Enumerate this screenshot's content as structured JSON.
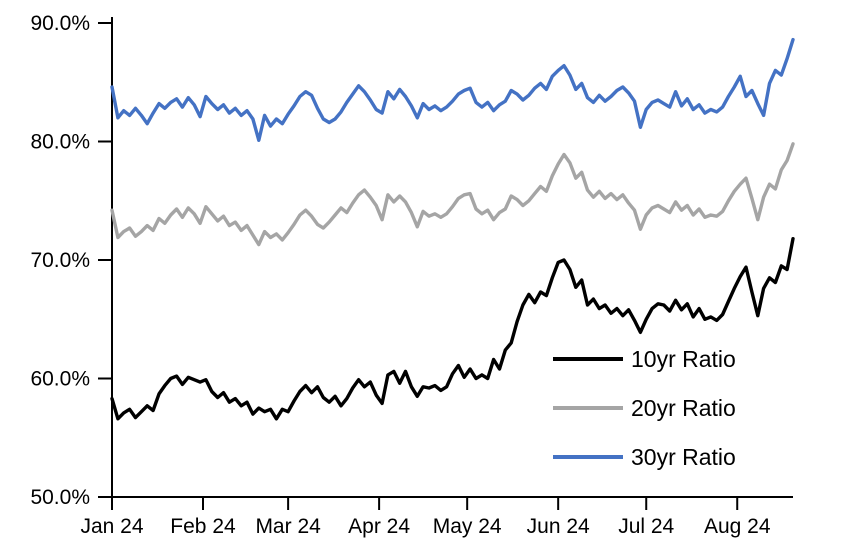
{
  "page": {
    "background": "#FFFFFF"
  },
  "chart_data": {
    "type": "line",
    "title": "",
    "xlabel": "",
    "ylabel": "",
    "grid": false,
    "legend": {
      "position": "inside-bottom-right",
      "entries": [
        "10yr Ratio",
        "20yr Ratio",
        "30yr Ratio"
      ]
    },
    "x_axis": {
      "unit": "days-from-Jan-1-24",
      "range_days": [
        0,
        232
      ],
      "tick_days": [
        0,
        31,
        60,
        91,
        121,
        152,
        182,
        213
      ],
      "tick_labels": [
        "Jan 24",
        "Feb 24",
        "Mar 24",
        "Apr 24",
        "May 24",
        "Jun 24",
        "Jul 24",
        "Aug 24"
      ]
    },
    "y_axis": {
      "range": [
        50,
        90
      ],
      "tick_values": [
        90,
        80,
        70,
        60,
        50
      ],
      "tick_labels": [
        "90.0%",
        "80.0%",
        "70.0%",
        "60.0%",
        "50.0%"
      ],
      "format": "percent_1dp"
    },
    "sample_step_days": 2,
    "series": [
      {
        "name": "10yr Ratio",
        "color": "#000000",
        "values": [
          58.3,
          56.6,
          57.1,
          57.4,
          56.7,
          57.2,
          57.7,
          57.3,
          58.7,
          59.4,
          60.0,
          60.2,
          59.5,
          60.1,
          59.9,
          59.7,
          59.9,
          58.9,
          58.4,
          58.8,
          58.0,
          58.3,
          57.7,
          58.0,
          57.0,
          57.5,
          57.2,
          57.4,
          56.6,
          57.4,
          57.2,
          58.1,
          58.9,
          59.4,
          58.8,
          59.3,
          58.4,
          58.0,
          58.5,
          57.7,
          58.3,
          59.2,
          59.9,
          59.3,
          59.7,
          58.6,
          57.9,
          60.3,
          60.6,
          59.6,
          60.6,
          59.3,
          58.5,
          59.3,
          59.2,
          59.4,
          59.0,
          59.3,
          60.4,
          61.1,
          60.1,
          60.8,
          60.0,
          60.3,
          60.0,
          61.6,
          60.8,
          62.4,
          63.0,
          64.8,
          66.2,
          67.1,
          66.4,
          67.3,
          67.0,
          68.5,
          69.8,
          70.0,
          69.2,
          67.7,
          68.3,
          66.2,
          66.7,
          65.9,
          66.2,
          65.5,
          65.9,
          65.3,
          65.8,
          64.9,
          63.9,
          65.0,
          65.9,
          66.3,
          66.2,
          65.7,
          66.6,
          65.8,
          66.3,
          65.2,
          65.9,
          65.0,
          65.2,
          64.9,
          65.4,
          66.5,
          67.6,
          68.6,
          69.4,
          67.3,
          65.3,
          67.6,
          68.5,
          68.1,
          69.5,
          69.2,
          71.8
        ]
      },
      {
        "name": "20yr Ratio",
        "color": "#A5A5A5",
        "values": [
          74.2,
          71.9,
          72.4,
          72.7,
          72.0,
          72.4,
          72.9,
          72.5,
          73.5,
          73.1,
          73.8,
          74.3,
          73.6,
          74.4,
          73.9,
          73.1,
          74.5,
          73.9,
          73.3,
          73.7,
          72.9,
          73.2,
          72.5,
          72.9,
          72.1,
          71.3,
          72.4,
          71.9,
          72.2,
          71.7,
          72.3,
          73.0,
          73.8,
          74.2,
          73.7,
          73.0,
          72.7,
          73.2,
          73.8,
          74.4,
          74.0,
          74.8,
          75.5,
          75.9,
          75.3,
          74.6,
          73.4,
          75.5,
          74.9,
          75.4,
          74.9,
          74.0,
          72.8,
          74.1,
          73.7,
          73.9,
          73.6,
          73.9,
          74.5,
          75.2,
          75.5,
          75.6,
          74.3,
          73.9,
          74.2,
          73.4,
          74.0,
          74.3,
          75.4,
          75.1,
          74.6,
          75.0,
          75.6,
          76.2,
          75.8,
          77.1,
          78.1,
          78.9,
          78.2,
          76.9,
          77.4,
          75.9,
          75.3,
          75.8,
          75.2,
          75.6,
          75.1,
          75.5,
          74.8,
          74.2,
          72.6,
          73.8,
          74.4,
          74.6,
          74.3,
          74.0,
          74.9,
          74.2,
          74.6,
          73.8,
          74.3,
          73.6,
          73.8,
          73.7,
          74.1,
          75.0,
          75.8,
          76.4,
          76.9,
          75.2,
          73.4,
          75.3,
          76.4,
          76.0,
          77.6,
          78.4,
          79.8
        ]
      },
      {
        "name": "30yr Ratio",
        "color": "#4472C4",
        "values": [
          84.6,
          82.0,
          82.6,
          82.2,
          82.8,
          82.2,
          81.5,
          82.4,
          83.2,
          82.8,
          83.3,
          83.6,
          82.9,
          83.7,
          83.1,
          82.1,
          83.8,
          83.2,
          82.7,
          83.1,
          82.4,
          82.8,
          82.2,
          82.6,
          81.9,
          80.1,
          82.2,
          81.3,
          81.9,
          81.5,
          82.3,
          83.0,
          83.8,
          84.2,
          83.9,
          82.8,
          81.9,
          81.6,
          81.9,
          82.5,
          83.3,
          84.0,
          84.7,
          84.2,
          83.5,
          82.7,
          82.4,
          84.2,
          83.6,
          84.4,
          83.8,
          83.0,
          82.0,
          83.2,
          82.7,
          83.0,
          82.6,
          82.9,
          83.4,
          84.0,
          84.3,
          84.5,
          83.3,
          82.9,
          83.3,
          82.6,
          83.1,
          83.4,
          84.3,
          84.0,
          83.5,
          83.9,
          84.5,
          84.9,
          84.4,
          85.5,
          86.0,
          86.4,
          85.6,
          84.4,
          84.9,
          83.7,
          83.3,
          83.9,
          83.4,
          83.8,
          84.3,
          84.6,
          84.1,
          83.4,
          81.2,
          82.7,
          83.3,
          83.5,
          83.2,
          82.9,
          84.2,
          83.0,
          83.6,
          82.7,
          83.1,
          82.4,
          82.7,
          82.5,
          82.9,
          83.8,
          84.6,
          85.5,
          83.8,
          84.3,
          83.2,
          82.2,
          84.9,
          86.0,
          85.6,
          87.0,
          88.6
        ]
      }
    ]
  }
}
